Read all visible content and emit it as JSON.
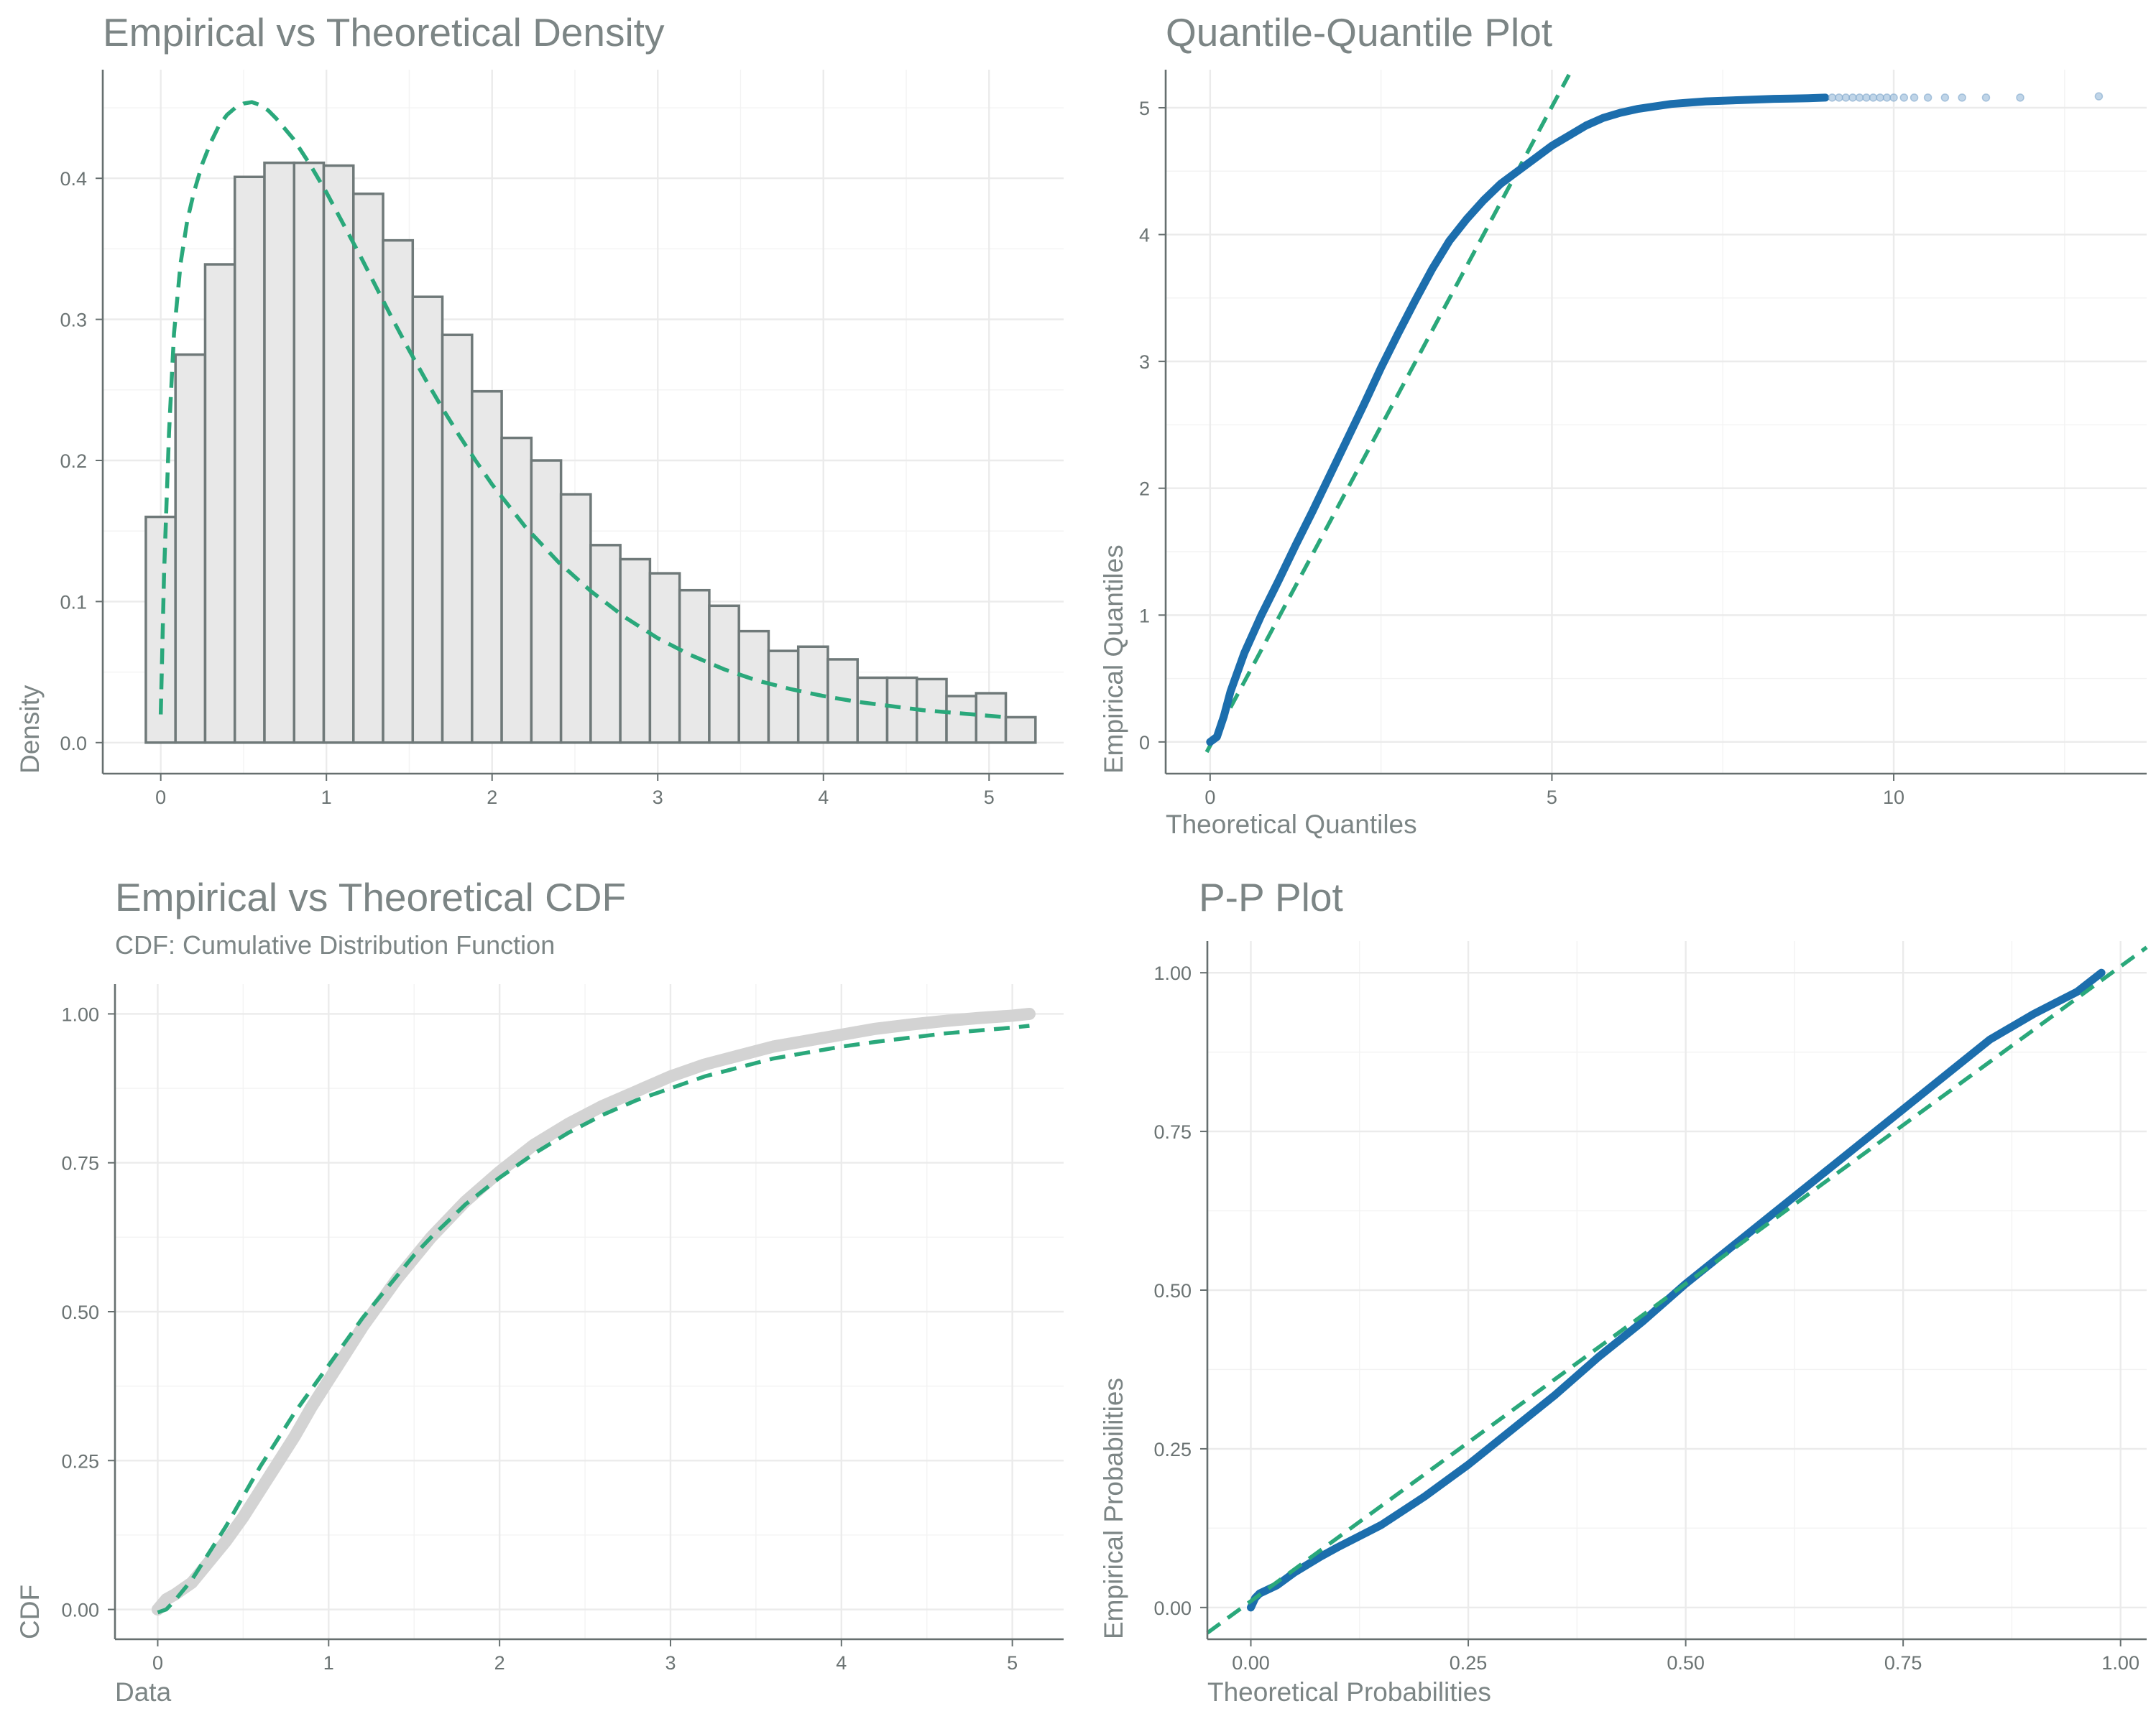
{
  "chart_data": [
    {
      "id": "density",
      "type": "bar",
      "title": "Empirical vs Theoretical Density",
      "subtitle": "",
      "xlabel": "",
      "ylabel": "Density",
      "xlim": [
        -0.35,
        5.45
      ],
      "ylim": [
        -0.022,
        0.477
      ],
      "xticks": [
        0,
        1,
        2,
        3,
        4,
        5
      ],
      "yticks": [
        0.0,
        0.1,
        0.2,
        0.3,
        0.4
      ],
      "ytick_labels": [
        "0.0",
        "0.1",
        "0.2",
        "0.3",
        "0.4"
      ],
      "bin_width": 0.179,
      "bin_start": -0.09,
      "values": [
        0.16,
        0.275,
        0.339,
        0.401,
        0.411,
        0.411,
        0.409,
        0.389,
        0.356,
        0.316,
        0.289,
        0.249,
        0.216,
        0.2,
        0.176,
        0.14,
        0.13,
        0.12,
        0.108,
        0.097,
        0.079,
        0.065,
        0.068,
        0.059,
        0.046,
        0.046,
        0.045,
        0.033,
        0.035,
        0.018
      ],
      "series": [
        {
          "name": "",
          "x": [
            0.0,
            0.02,
            0.05,
            0.08,
            0.12,
            0.16,
            0.2,
            0.25,
            0.3,
            0.35,
            0.4,
            0.45,
            0.5,
            0.55,
            0.6,
            0.65,
            0.7,
            0.8,
            0.9,
            1.0,
            1.1,
            1.2,
            1.3,
            1.4,
            1.5,
            1.6,
            1.7,
            1.8,
            1.9,
            2.0,
            2.2,
            2.4,
            2.6,
            2.8,
            3.0,
            3.2,
            3.4,
            3.6,
            3.8,
            4.0,
            4.2,
            4.4,
            4.6,
            4.8,
            5.0,
            5.1
          ],
          "y": [
            0.02,
            0.12,
            0.22,
            0.29,
            0.34,
            0.37,
            0.39,
            0.41,
            0.425,
            0.437,
            0.445,
            0.45,
            0.453,
            0.454,
            0.452,
            0.448,
            0.442,
            0.428,
            0.41,
            0.39,
            0.368,
            0.346,
            0.323,
            0.3,
            0.278,
            0.257,
            0.237,
            0.218,
            0.2,
            0.183,
            0.153,
            0.128,
            0.107,
            0.089,
            0.074,
            0.062,
            0.052,
            0.044,
            0.038,
            0.033,
            0.029,
            0.026,
            0.023,
            0.021,
            0.019,
            0.018
          ]
        }
      ]
    },
    {
      "id": "qq",
      "type": "scatter",
      "title": "Quantile-Quantile Plot",
      "subtitle": "",
      "xlabel": "Theoretical Quantiles",
      "ylabel": "Empirical Quantiles",
      "xlim": [
        -0.65,
        13.7
      ],
      "ylim": [
        -0.25,
        5.3
      ],
      "xticks": [
        0,
        5,
        10
      ],
      "yticks": [
        0,
        1,
        2,
        3,
        4,
        5
      ],
      "series": [
        {
          "name": "",
          "x": [
            0.0,
            0.05,
            0.1,
            0.2,
            0.3,
            0.5,
            0.75,
            1.0,
            1.25,
            1.5,
            1.75,
            2.0,
            2.25,
            2.5,
            2.75,
            3.0,
            3.25,
            3.5,
            3.75,
            4.0,
            4.25,
            4.5,
            4.75,
            5.0,
            5.25,
            5.5,
            5.75,
            6.0,
            6.25,
            6.5,
            6.75,
            7.0,
            7.25,
            7.5,
            7.75,
            8.0,
            8.25,
            8.5,
            8.75,
            9.0
          ],
          "y": [
            0.0,
            0.02,
            0.04,
            0.2,
            0.4,
            0.7,
            1.0,
            1.27,
            1.55,
            1.82,
            2.1,
            2.38,
            2.66,
            2.95,
            3.22,
            3.48,
            3.73,
            3.95,
            4.12,
            4.27,
            4.4,
            4.5,
            4.6,
            4.7,
            4.78,
            4.86,
            4.92,
            4.96,
            4.99,
            5.01,
            5.03,
            5.04,
            5.05,
            5.055,
            5.06,
            5.065,
            5.07,
            5.072,
            5.075,
            5.08
          ]
        },
        {
          "name": "",
          "x": [
            9.1,
            9.2,
            9.3,
            9.4,
            9.5,
            9.6,
            9.7,
            9.8,
            9.9,
            10.0,
            10.15,
            10.3,
            10.5,
            10.75,
            11.0,
            11.35,
            11.85,
            13.0
          ],
          "y": [
            5.08,
            5.08,
            5.08,
            5.08,
            5.08,
            5.08,
            5.08,
            5.08,
            5.08,
            5.08,
            5.08,
            5.08,
            5.08,
            5.08,
            5.08,
            5.08,
            5.08,
            5.09
          ]
        },
        {
          "name": "",
          "x": [
            -0.05,
            5.25
          ],
          "y": [
            -0.08,
            5.26
          ]
        }
      ]
    },
    {
      "id": "cdf",
      "type": "line",
      "title": "Empirical vs Theoretical CDF",
      "subtitle": "CDF: Cumulative Distribution Function",
      "xlabel": "Data",
      "ylabel": "CDF",
      "xlim": [
        -0.25,
        5.3
      ],
      "ylim": [
        -0.05,
        1.05
      ],
      "xticks": [
        0,
        1,
        2,
        3,
        4,
        5
      ],
      "yticks": [
        0.0,
        0.25,
        0.5,
        0.75,
        1.0
      ],
      "ytick_labels": [
        "0.00",
        "0.25",
        "0.50",
        "0.75",
        "1.00"
      ],
      "series": [
        {
          "name": "",
          "x": [
            0.0,
            0.05,
            0.1,
            0.2,
            0.3,
            0.4,
            0.5,
            0.6,
            0.7,
            0.8,
            0.9,
            1.0,
            1.1,
            1.2,
            1.3,
            1.4,
            1.5,
            1.6,
            1.8,
            2.0,
            2.2,
            2.4,
            2.6,
            2.8,
            3.0,
            3.2,
            3.4,
            3.6,
            3.8,
            4.0,
            4.2,
            4.4,
            4.6,
            4.8,
            5.0,
            5.1
          ],
          "y": [
            0.0,
            0.017,
            0.025,
            0.045,
            0.08,
            0.115,
            0.155,
            0.2,
            0.245,
            0.29,
            0.34,
            0.385,
            0.43,
            0.475,
            0.515,
            0.555,
            0.59,
            0.625,
            0.685,
            0.735,
            0.78,
            0.815,
            0.845,
            0.87,
            0.895,
            0.915,
            0.93,
            0.945,
            0.955,
            0.965,
            0.975,
            0.982,
            0.988,
            0.993,
            0.997,
            1.0
          ]
        },
        {
          "name": "",
          "x": [
            0.0,
            0.05,
            0.1,
            0.2,
            0.3,
            0.4,
            0.5,
            0.6,
            0.7,
            0.8,
            0.9,
            1.0,
            1.1,
            1.2,
            1.3,
            1.4,
            1.5,
            1.6,
            1.8,
            2.0,
            2.2,
            2.4,
            2.6,
            2.8,
            3.0,
            3.2,
            3.4,
            3.6,
            3.8,
            4.0,
            4.2,
            4.4,
            4.6,
            4.8,
            5.0,
            5.1
          ],
          "y": [
            -0.005,
            0.0,
            0.015,
            0.05,
            0.095,
            0.14,
            0.19,
            0.24,
            0.285,
            0.33,
            0.37,
            0.41,
            0.45,
            0.49,
            0.525,
            0.56,
            0.595,
            0.625,
            0.68,
            0.725,
            0.765,
            0.8,
            0.83,
            0.855,
            0.875,
            0.895,
            0.91,
            0.925,
            0.935,
            0.945,
            0.953,
            0.96,
            0.967,
            0.972,
            0.977,
            0.98
          ]
        }
      ]
    },
    {
      "id": "pp",
      "type": "line",
      "title": "P-P Plot",
      "subtitle": "",
      "xlabel": "Theoretical Probabilities",
      "ylabel": "Empirical Probabilities",
      "xlim": [
        -0.05,
        1.03
      ],
      "ylim": [
        -0.05,
        1.05
      ],
      "xticks": [
        0.0,
        0.25,
        0.5,
        0.75,
        1.0
      ],
      "xtick_labels": [
        "0.00",
        "0.25",
        "0.50",
        "0.75",
        "1.00"
      ],
      "yticks": [
        0.0,
        0.25,
        0.5,
        0.75,
        1.0
      ],
      "ytick_labels": [
        "0.00",
        "0.25",
        "0.50",
        "0.75",
        "1.00"
      ],
      "series": [
        {
          "name": "",
          "x": [
            0.0,
            0.005,
            0.01,
            0.03,
            0.05,
            0.08,
            0.1,
            0.15,
            0.2,
            0.25,
            0.3,
            0.35,
            0.4,
            0.45,
            0.5,
            0.55,
            0.6,
            0.65,
            0.7,
            0.75,
            0.8,
            0.85,
            0.9,
            0.95,
            0.978
          ],
          "y": [
            0.0,
            0.015,
            0.022,
            0.035,
            0.055,
            0.08,
            0.095,
            0.13,
            0.175,
            0.225,
            0.28,
            0.335,
            0.395,
            0.45,
            0.51,
            0.565,
            0.62,
            0.675,
            0.73,
            0.785,
            0.84,
            0.895,
            0.935,
            0.97,
            1.0
          ]
        },
        {
          "name": "",
          "x": [
            -0.05,
            1.03
          ],
          "y": [
            -0.04,
            1.04
          ]
        }
      ]
    }
  ]
}
